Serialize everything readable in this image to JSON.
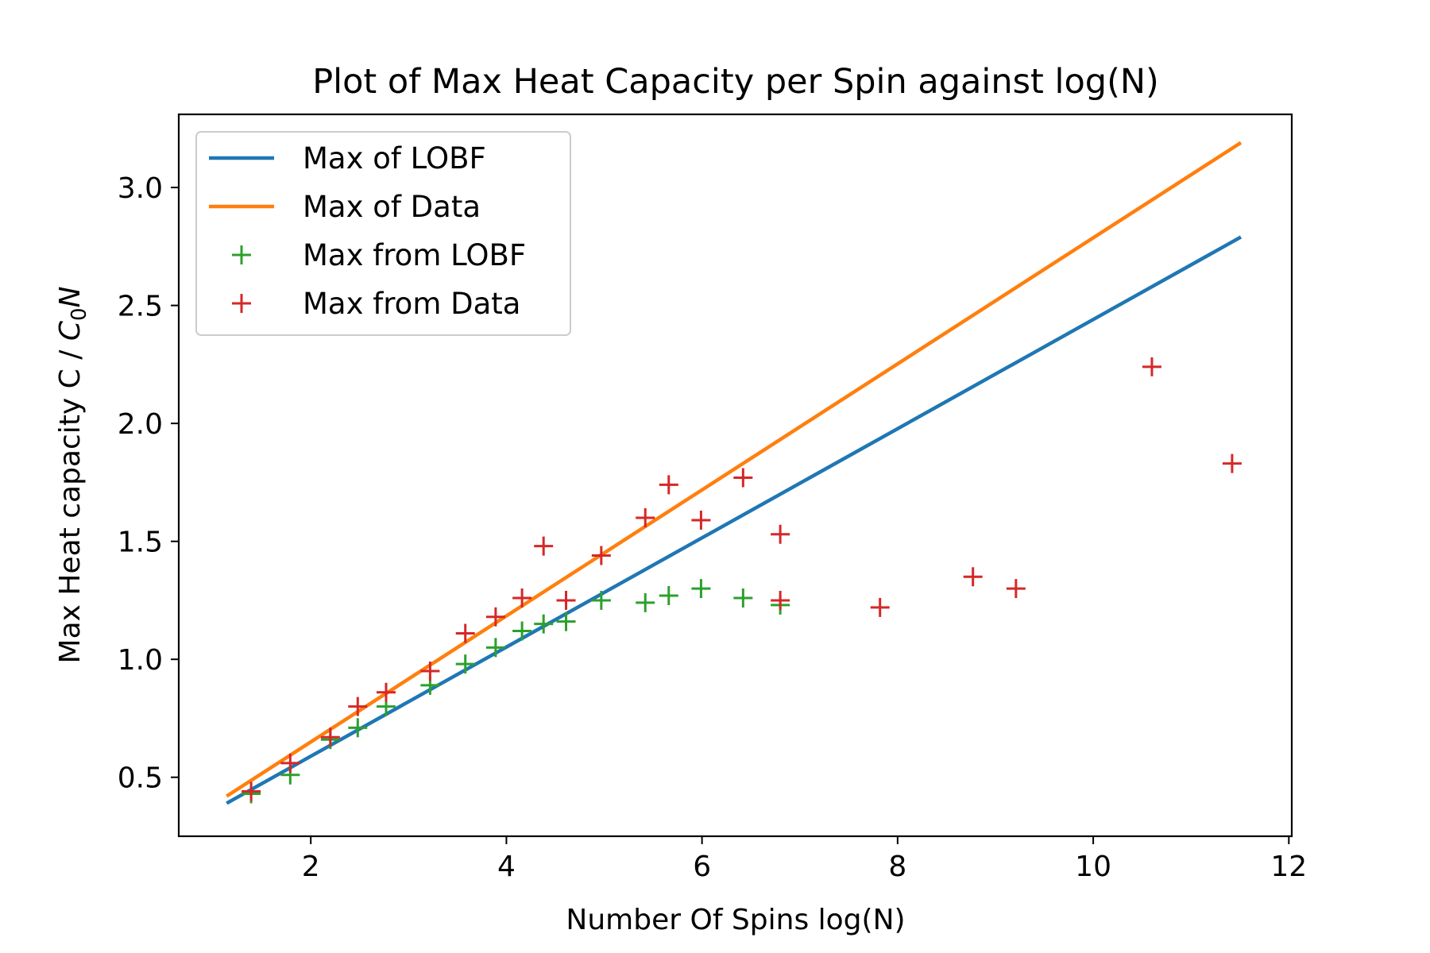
{
  "chart_data": {
    "type": "line",
    "title": "Plot of Max Heat Capacity per Spin against log(N)",
    "xlabel": "Number Of Spins log(N)",
    "ylabel_main": "Max Heat capacity C / ",
    "ylabel_symbol": "C",
    "ylabel_subscript": "0",
    "ylabel_tail": "N",
    "xlim": [
      0.65,
      12.03
    ],
    "ylim": [
      0.25,
      3.31
    ],
    "xticks": [
      2,
      4,
      6,
      8,
      10,
      12
    ],
    "xtick_labels": [
      "2",
      "4",
      "6",
      "8",
      "10",
      "12"
    ],
    "yticks": [
      0.5,
      1.0,
      1.5,
      2.0,
      2.5,
      3.0
    ],
    "ytick_labels": [
      "0.5",
      "1.0",
      "1.5",
      "2.0",
      "2.5",
      "3.0"
    ],
    "grid": false,
    "legend_position": "top-left",
    "series": [
      {
        "name": "Max of LOBF",
        "kind": "line",
        "color": "#1f77b4",
        "x": [
          1.14,
          11.51
        ],
        "y": [
          0.39,
          2.79
        ]
      },
      {
        "name": "Max of Data",
        "kind": "line",
        "color": "#ff7f0e",
        "x": [
          1.14,
          11.51
        ],
        "y": [
          0.42,
          3.19
        ]
      },
      {
        "name": "Max from LOBF",
        "kind": "marker",
        "marker": "plus",
        "color": "#2ca02c",
        "x": [
          1.39,
          1.79,
          2.2,
          2.48,
          2.77,
          3.22,
          3.58,
          3.89,
          4.16,
          4.38,
          4.61,
          4.97,
          5.42,
          5.66,
          5.99,
          6.42,
          6.8
        ],
        "y": [
          0.43,
          0.51,
          0.66,
          0.71,
          0.8,
          0.89,
          0.98,
          1.05,
          1.12,
          1.15,
          1.16,
          1.25,
          1.24,
          1.27,
          1.3,
          1.26,
          1.23
        ]
      },
      {
        "name": "Max from Data",
        "kind": "marker",
        "marker": "plus",
        "color": "#d62728",
        "x": [
          1.39,
          1.79,
          2.2,
          2.48,
          2.77,
          3.22,
          3.58,
          3.89,
          4.16,
          4.38,
          4.61,
          4.97,
          5.42,
          5.66,
          5.99,
          6.42,
          6.8,
          6.8,
          7.82,
          8.77,
          9.21,
          10.6,
          11.42
        ],
        "y": [
          0.44,
          0.56,
          0.67,
          0.8,
          0.86,
          0.95,
          1.11,
          1.18,
          1.26,
          1.48,
          1.25,
          1.44,
          1.6,
          1.74,
          1.59,
          1.77,
          1.53,
          1.25,
          1.22,
          1.35,
          1.3,
          2.24,
          1.83
        ]
      }
    ]
  }
}
